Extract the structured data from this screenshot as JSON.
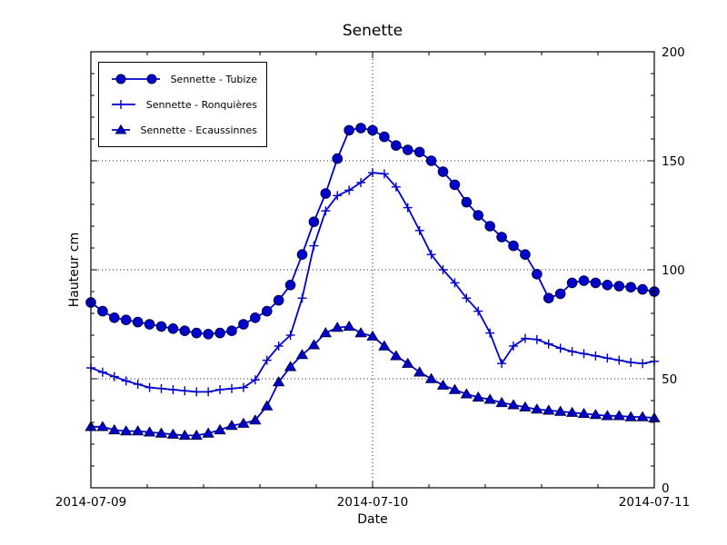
{
  "figure": {
    "background_color": "#ffffff",
    "accent_color": "#0000cc"
  },
  "chart_data": {
    "type": "line",
    "title": "Senette",
    "xlabel": "Date",
    "ylabel": "Hauteur cm",
    "ylim": [
      0,
      200
    ],
    "yticks": [
      0,
      50,
      100,
      150,
      200
    ],
    "ytick_labels": [
      "0",
      "50",
      "100",
      "150",
      "200"
    ],
    "ytick_label_side": "right",
    "xtick_labels": [
      "2014-07-09",
      "2014-07-10",
      "2014-07-11"
    ],
    "xtick_hours": [
      0,
      24,
      48
    ],
    "x_unit": "hours since 2014-07-09 00:00",
    "x": [
      0,
      1,
      2,
      3,
      4,
      5,
      6,
      7,
      8,
      9,
      10,
      11,
      12,
      13,
      14,
      15,
      16,
      17,
      18,
      19,
      20,
      21,
      22,
      23,
      24,
      25,
      26,
      27,
      28,
      29,
      30,
      31,
      32,
      33,
      34,
      35,
      36,
      37,
      38,
      39,
      40,
      41,
      42,
      43,
      44,
      45,
      46,
      47,
      48
    ],
    "grid": {
      "style": "dotted",
      "horizontal_at": [
        50,
        100,
        150
      ],
      "vertical_at_hours": [
        24
      ]
    },
    "legend_position": "upper left",
    "line_color": "#0000cc",
    "series": [
      {
        "name": "Sennette - Tubize",
        "marker": "circle",
        "values": [
          85,
          81,
          78,
          77,
          76,
          75,
          74,
          73,
          72,
          71,
          70.5,
          71,
          72,
          75,
          78,
          81,
          86,
          93,
          107,
          122,
          135,
          151,
          164,
          165,
          164,
          161,
          157,
          155,
          154,
          150,
          145,
          139,
          131,
          125,
          120,
          115,
          111,
          107,
          98,
          87,
          89,
          94,
          95,
          94,
          93,
          92.5,
          92,
          91,
          90
        ]
      },
      {
        "name": "Sennette - Ronquières",
        "marker": "plus",
        "values": [
          55,
          53,
          51,
          49,
          47.5,
          46,
          45.5,
          45,
          44.5,
          44,
          44,
          45,
          45.5,
          46,
          49.5,
          58.5,
          65,
          70,
          87,
          111,
          127,
          134,
          136.5,
          140,
          144.5,
          144,
          138,
          128.5,
          118,
          107,
          100,
          94,
          87,
          81,
          71,
          57,
          65,
          68.5,
          68,
          66,
          64,
          62.5,
          61.5,
          60.5,
          59.5,
          58.5,
          57.5,
          57,
          58
        ]
      },
      {
        "name": "Sennette - Ecaussinnes",
        "marker": "triangle",
        "values": [
          28,
          28,
          26.5,
          26,
          26,
          25.5,
          25,
          24.5,
          24,
          24,
          25,
          26.5,
          28.5,
          29.5,
          31,
          37.5,
          48.5,
          55.5,
          61,
          65.5,
          71,
          73.5,
          74,
          71,
          69.5,
          65,
          60.5,
          57,
          53,
          50,
          47,
          45,
          43,
          41.5,
          40.5,
          39,
          38,
          37,
          36,
          35.5,
          35,
          34.5,
          34,
          33.5,
          33,
          33,
          32.5,
          32.5,
          32
        ]
      }
    ]
  }
}
